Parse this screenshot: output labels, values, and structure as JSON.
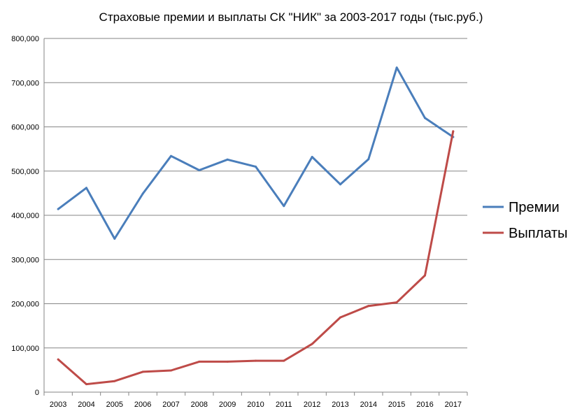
{
  "chart_data": {
    "type": "line",
    "title": "Страховые премии и выплаты СК \"НИК\" за 2003-2017 годы (тыс.руб.)",
    "xlabel": "",
    "ylabel": "",
    "categories": [
      "2003",
      "2004",
      "2005",
      "2006",
      "2007",
      "2008",
      "2009",
      "2010",
      "2011",
      "2012",
      "2013",
      "2014",
      "2015",
      "2016",
      "2017"
    ],
    "ylim": [
      0,
      800000
    ],
    "y_ticks": [
      0,
      100000,
      200000,
      300000,
      400000,
      500000,
      600000,
      700000,
      800000
    ],
    "y_tick_labels": [
      "0",
      "100,000",
      "200,000",
      "300,000",
      "400,000",
      "500,000",
      "600,000",
      "700,000",
      "800,000"
    ],
    "grid": "horizontal",
    "legend_position": "right",
    "series": [
      {
        "name": "Премии",
        "color": "#4a7ebb",
        "values": [
          414000,
          462000,
          347000,
          449000,
          534000,
          502000,
          526000,
          510000,
          421000,
          532000,
          470000,
          527000,
          734000,
          620000,
          577000
        ]
      },
      {
        "name": "Выплаты",
        "color": "#be4b48",
        "values": [
          74000,
          18000,
          25000,
          46000,
          49000,
          69000,
          69000,
          71000,
          71000,
          109000,
          169000,
          195000,
          203000,
          264000,
          590000
        ]
      }
    ]
  }
}
